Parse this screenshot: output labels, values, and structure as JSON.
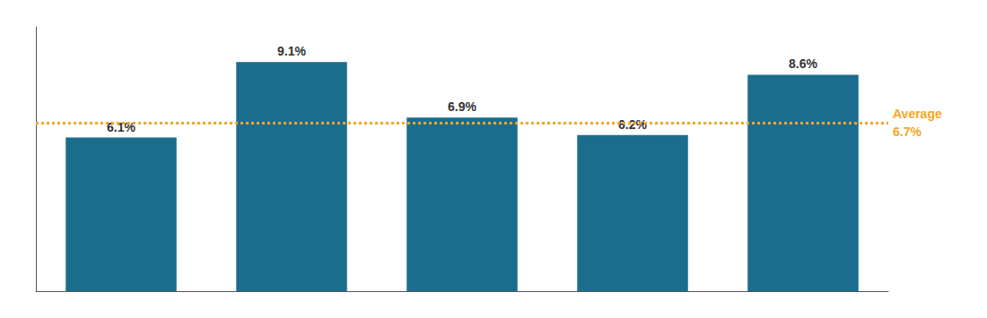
{
  "chart_data": {
    "type": "bar",
    "categories": [
      null,
      null,
      null,
      null,
      null
    ],
    "values": [
      6.1,
      9.1,
      6.9,
      6.2,
      8.6
    ],
    "value_labels": [
      "6.1%",
      "9.1%",
      "6.9%",
      "6.2%",
      "8.6%"
    ],
    "data_labels": true,
    "color": "#1b6d8e",
    "ylim": [
      0,
      10.5
    ],
    "grid": false,
    "tick_labels": false,
    "annotations": [
      {
        "type": "line",
        "value": 6.7,
        "text": [
          "Average",
          "6.7%"
        ],
        "color": "#f5a623",
        "line_style": "dotted"
      }
    ]
  }
}
